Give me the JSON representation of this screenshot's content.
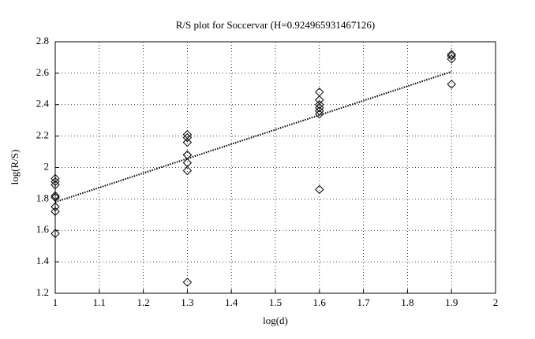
{
  "chart_data": {
    "type": "scatter",
    "title": "R/S plot for Soccervar (H=0.924965931467126)",
    "xlabel": "log(d)",
    "ylabel": "log(R/S)",
    "xlim": [
      1,
      2
    ],
    "ylim": [
      1.2,
      2.8
    ],
    "xticks": [
      1,
      1.1,
      1.2,
      1.3,
      1.4,
      1.5,
      1.6,
      1.7,
      1.8,
      1.9,
      2
    ],
    "yticks": [
      1.2,
      1.4,
      1.6,
      1.8,
      2,
      2.2,
      2.4,
      2.6,
      2.8
    ],
    "grid": true,
    "series": [
      {
        "type": "scatter",
        "marker": "diamond",
        "color": "#000000",
        "x": [
          1,
          1,
          1,
          1,
          1,
          1,
          1,
          1,
          1.3,
          1.3,
          1.3,
          1.3,
          1.3,
          1.3,
          1.3,
          1.3,
          1.6,
          1.6,
          1.6,
          1.6,
          1.6,
          1.6,
          1.6,
          1.9,
          1.9,
          1.9,
          1.9
        ],
        "values": [
          1.93,
          1.91,
          1.89,
          1.82,
          1.81,
          1.75,
          1.72,
          1.58,
          2.21,
          2.19,
          2.16,
          2.08,
          2.08,
          2.03,
          1.98,
          1.27,
          2.48,
          2.43,
          2.4,
          2.38,
          2.36,
          2.34,
          1.86,
          2.72,
          2.71,
          2.69,
          2.53
        ]
      },
      {
        "type": "line",
        "style": "dotted",
        "color": "#000000",
        "x": [
          1,
          1.9
        ],
        "values": [
          1.78,
          2.61
        ]
      }
    ]
  }
}
